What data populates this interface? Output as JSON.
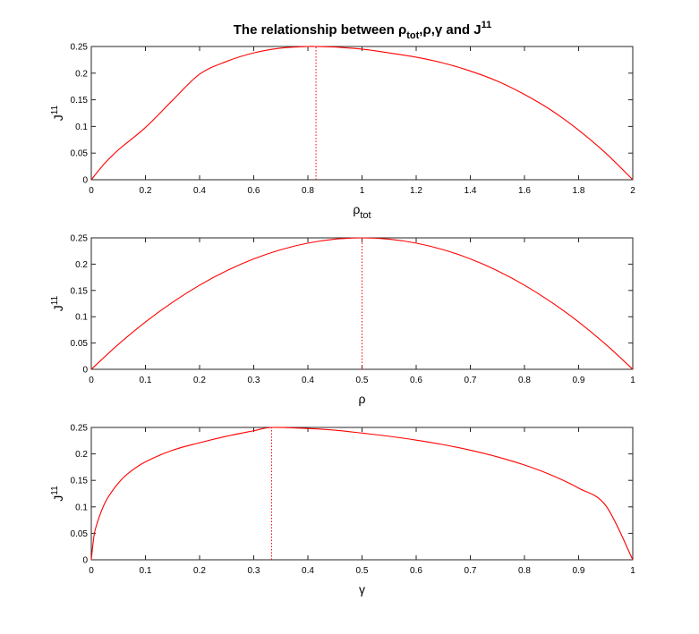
{
  "figure": {
    "title": {
      "prefix": "The relationship between ",
      "rho": "ρ",
      "rho_sub": "tot",
      "mid": ",ρ,γ and ",
      "J": "J",
      "J_sup": "11"
    }
  },
  "chart_data": [
    {
      "type": "line",
      "xlabel": {
        "main": "ρ",
        "sub": "tot"
      },
      "ylabel": {
        "main": "J",
        "sup": "11"
      },
      "xlim": [
        0,
        2
      ],
      "ylim": [
        0,
        0.25
      ],
      "xticks": [
        0,
        0.2,
        0.4,
        0.6,
        0.8,
        1,
        1.2,
        1.4,
        1.6,
        1.8,
        2
      ],
      "xtick_labels": [
        "0",
        "0.2",
        "0.4",
        "0.6",
        "0.8",
        "1",
        "1.2",
        "1.4",
        "1.6",
        "1.8",
        "2"
      ],
      "yticks": [
        0,
        0.05,
        0.1,
        0.15,
        0.2,
        0.25
      ],
      "ytick_labels": [
        "0",
        "0.05",
        "0.1",
        "0.15",
        "0.2",
        "0.25"
      ],
      "grid": false,
      "series": [
        {
          "color": "#ff0000",
          "x": [
            0,
            0.05,
            0.1,
            0.2,
            0.3,
            0.4,
            0.5,
            0.6,
            0.7,
            0.8,
            0.83,
            0.9,
            1.0,
            1.1,
            1.2,
            1.3,
            1.4,
            1.5,
            1.6,
            1.7,
            1.8,
            1.9,
            2.0
          ],
          "y": [
            0,
            0.031,
            0.056,
            0.098,
            0.149,
            0.198,
            0.222,
            0.238,
            0.247,
            0.25,
            0.25,
            0.249,
            0.245,
            0.238,
            0.23,
            0.219,
            0.204,
            0.185,
            0.16,
            0.13,
            0.093,
            0.05,
            0
          ]
        }
      ],
      "vline": {
        "x": 0.83,
        "y_top": 0.25,
        "style": "dotted",
        "color": "#ff0000"
      }
    },
    {
      "type": "line",
      "xlabel": {
        "main": "ρ",
        "sub": ""
      },
      "ylabel": {
        "main": "J",
        "sup": "11"
      },
      "xlim": [
        0,
        1
      ],
      "ylim": [
        0,
        0.25
      ],
      "xticks": [
        0,
        0.1,
        0.2,
        0.3,
        0.4,
        0.5,
        0.6,
        0.7,
        0.8,
        0.9,
        1
      ],
      "xtick_labels": [
        "0",
        "0.1",
        "0.2",
        "0.3",
        "0.4",
        "0.5",
        "0.6",
        "0.7",
        "0.8",
        "0.9",
        "1"
      ],
      "yticks": [
        0,
        0.05,
        0.1,
        0.15,
        0.2,
        0.25
      ],
      "ytick_labels": [
        "0",
        "0.05",
        "0.1",
        "0.15",
        "0.2",
        "0.25"
      ],
      "grid": false,
      "series": [
        {
          "color": "#ff0000",
          "x": [
            0,
            0.05,
            0.1,
            0.15,
            0.2,
            0.25,
            0.3,
            0.35,
            0.4,
            0.45,
            0.5,
            0.55,
            0.6,
            0.65,
            0.7,
            0.75,
            0.8,
            0.85,
            0.9,
            0.95,
            1
          ],
          "y": [
            0,
            0.0475,
            0.09,
            0.1275,
            0.16,
            0.1875,
            0.21,
            0.2275,
            0.24,
            0.2475,
            0.25,
            0.2475,
            0.24,
            0.2275,
            0.21,
            0.1875,
            0.16,
            0.1275,
            0.09,
            0.0475,
            0
          ]
        }
      ],
      "vline": {
        "x": 0.5,
        "y_top": 0.25,
        "style": "dotted",
        "color": "#ff0000"
      }
    },
    {
      "type": "line",
      "xlabel": {
        "main": "γ",
        "sub": ""
      },
      "ylabel": {
        "main": "J",
        "sup": "11"
      },
      "xlim": [
        0,
        1
      ],
      "ylim": [
        0,
        0.25
      ],
      "xticks": [
        0,
        0.1,
        0.2,
        0.3,
        0.4,
        0.5,
        0.6,
        0.7,
        0.8,
        0.9,
        1
      ],
      "xtick_labels": [
        "0",
        "0.1",
        "0.2",
        "0.3",
        "0.4",
        "0.5",
        "0.6",
        "0.7",
        "0.8",
        "0.9",
        "1"
      ],
      "yticks": [
        0,
        0.05,
        0.1,
        0.15,
        0.2,
        0.25
      ],
      "ytick_labels": [
        "0",
        "0.05",
        "0.1",
        "0.15",
        "0.2",
        "0.25"
      ],
      "grid": false,
      "series": [
        {
          "color": "#ff0000",
          "x": [
            0,
            0.005,
            0.01,
            0.02,
            0.03,
            0.05,
            0.07,
            0.1,
            0.15,
            0.2,
            0.25,
            0.3,
            0.333,
            0.4,
            0.45,
            0.5,
            0.55,
            0.6,
            0.65,
            0.7,
            0.75,
            0.8,
            0.85,
            0.9,
            0.95,
            1
          ],
          "y": [
            0,
            0.0456,
            0.0664,
            0.0954,
            0.1165,
            0.1449,
            0.1648,
            0.185,
            0.2069,
            0.2211,
            0.2334,
            0.2437,
            0.25,
            0.248,
            0.2449,
            0.2393,
            0.2333,
            0.2261,
            0.2175,
            0.207,
            0.1944,
            0.179,
            0.1598,
            0.1353,
            0.1026,
            0
          ]
        }
      ],
      "vline": {
        "x": 0.333,
        "y_top": 0.25,
        "style": "dotted",
        "color": "#ff0000"
      }
    }
  ]
}
